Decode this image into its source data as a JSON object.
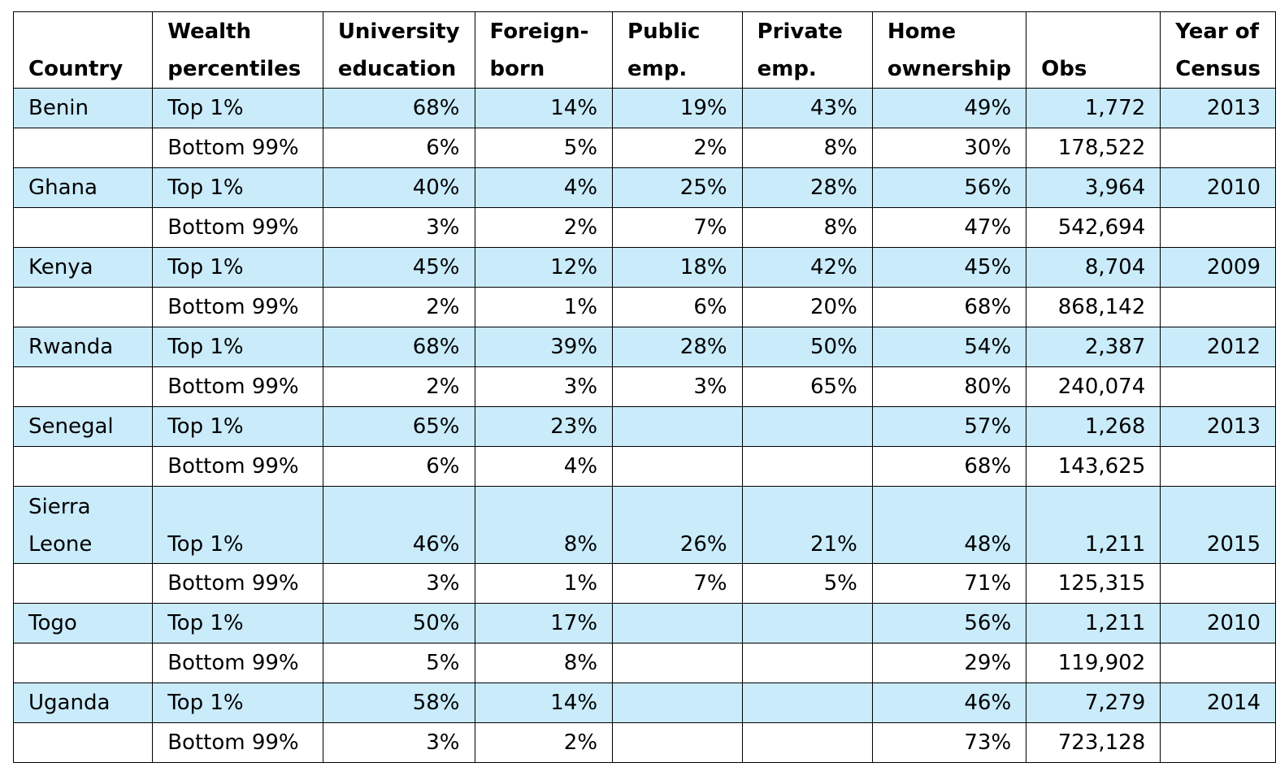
{
  "table": {
    "headers": [
      "Country",
      "Wealth percentiles",
      "University education",
      "Foreign-born",
      "Public emp.",
      "Private emp.",
      "Home ownership",
      "Obs",
      "Year of Census"
    ],
    "rows": [
      {
        "country": "Benin",
        "wealth": "Top 1%",
        "university": "68%",
        "foreign": "14%",
        "public": "19%",
        "private": "43%",
        "home": "49%",
        "obs": "1,772",
        "year": "2013"
      },
      {
        "country": "",
        "wealth": "Bottom 99%",
        "university": "6%",
        "foreign": "5%",
        "public": "2%",
        "private": "8%",
        "home": "30%",
        "obs": "178,522",
        "year": ""
      },
      {
        "country": "Ghana",
        "wealth": "Top 1%",
        "university": "40%",
        "foreign": "4%",
        "public": "25%",
        "private": "28%",
        "home": "56%",
        "obs": "3,964",
        "year": "2010"
      },
      {
        "country": "",
        "wealth": "Bottom 99%",
        "university": "3%",
        "foreign": "2%",
        "public": "7%",
        "private": "8%",
        "home": "47%",
        "obs": "542,694",
        "year": ""
      },
      {
        "country": "Kenya",
        "wealth": "Top 1%",
        "university": "45%",
        "foreign": "12%",
        "public": "18%",
        "private": "42%",
        "home": "45%",
        "obs": "8,704",
        "year": "2009"
      },
      {
        "country": "",
        "wealth": "Bottom 99%",
        "university": "2%",
        "foreign": "1%",
        "public": "6%",
        "private": "20%",
        "home": "68%",
        "obs": "868,142",
        "year": ""
      },
      {
        "country": "Rwanda",
        "wealth": "Top 1%",
        "university": "68%",
        "foreign": "39%",
        "public": "28%",
        "private": "50%",
        "home": "54%",
        "obs": "2,387",
        "year": "2012"
      },
      {
        "country": "",
        "wealth": "Bottom 99%",
        "university": "2%",
        "foreign": "3%",
        "public": "3%",
        "private": "65%",
        "home": "80%",
        "obs": "240,074",
        "year": ""
      },
      {
        "country": "Senegal",
        "wealth": "Top 1%",
        "university": "65%",
        "foreign": "23%",
        "public": "",
        "private": "",
        "home": "57%",
        "obs": "1,268",
        "year": "2013"
      },
      {
        "country": "",
        "wealth": "Bottom 99%",
        "university": "6%",
        "foreign": "4%",
        "public": "",
        "private": "",
        "home": "68%",
        "obs": "143,625",
        "year": ""
      },
      {
        "country": "Sierra Leone",
        "wealth": "Top 1%",
        "university": "46%",
        "foreign": "8%",
        "public": "26%",
        "private": "21%",
        "home": "48%",
        "obs": "1,211",
        "year": "2015"
      },
      {
        "country": "",
        "wealth": "Bottom 99%",
        "university": "3%",
        "foreign": "1%",
        "public": "7%",
        "private": "5%",
        "home": "71%",
        "obs": "125,315",
        "year": ""
      },
      {
        "country": "Togo",
        "wealth": "Top 1%",
        "university": "50%",
        "foreign": "17%",
        "public": "",
        "private": "",
        "home": "56%",
        "obs": "1,211",
        "year": "2010"
      },
      {
        "country": "",
        "wealth": "Bottom 99%",
        "university": "5%",
        "foreign": "8%",
        "public": "",
        "private": "",
        "home": "29%",
        "obs": "119,902",
        "year": ""
      },
      {
        "country": "Uganda",
        "wealth": "Top 1%",
        "university": "58%",
        "foreign": "14%",
        "public": "",
        "private": "",
        "home": "46%",
        "obs": "7,279",
        "year": "2014"
      },
      {
        "country": "",
        "wealth": "Bottom 99%",
        "university": "3%",
        "foreign": "2%",
        "public": "",
        "private": "",
        "home": "73%",
        "obs": "723,128",
        "year": ""
      }
    ]
  },
  "colors": {
    "highlight_row": "#c9ebfa",
    "border": "#000000"
  }
}
